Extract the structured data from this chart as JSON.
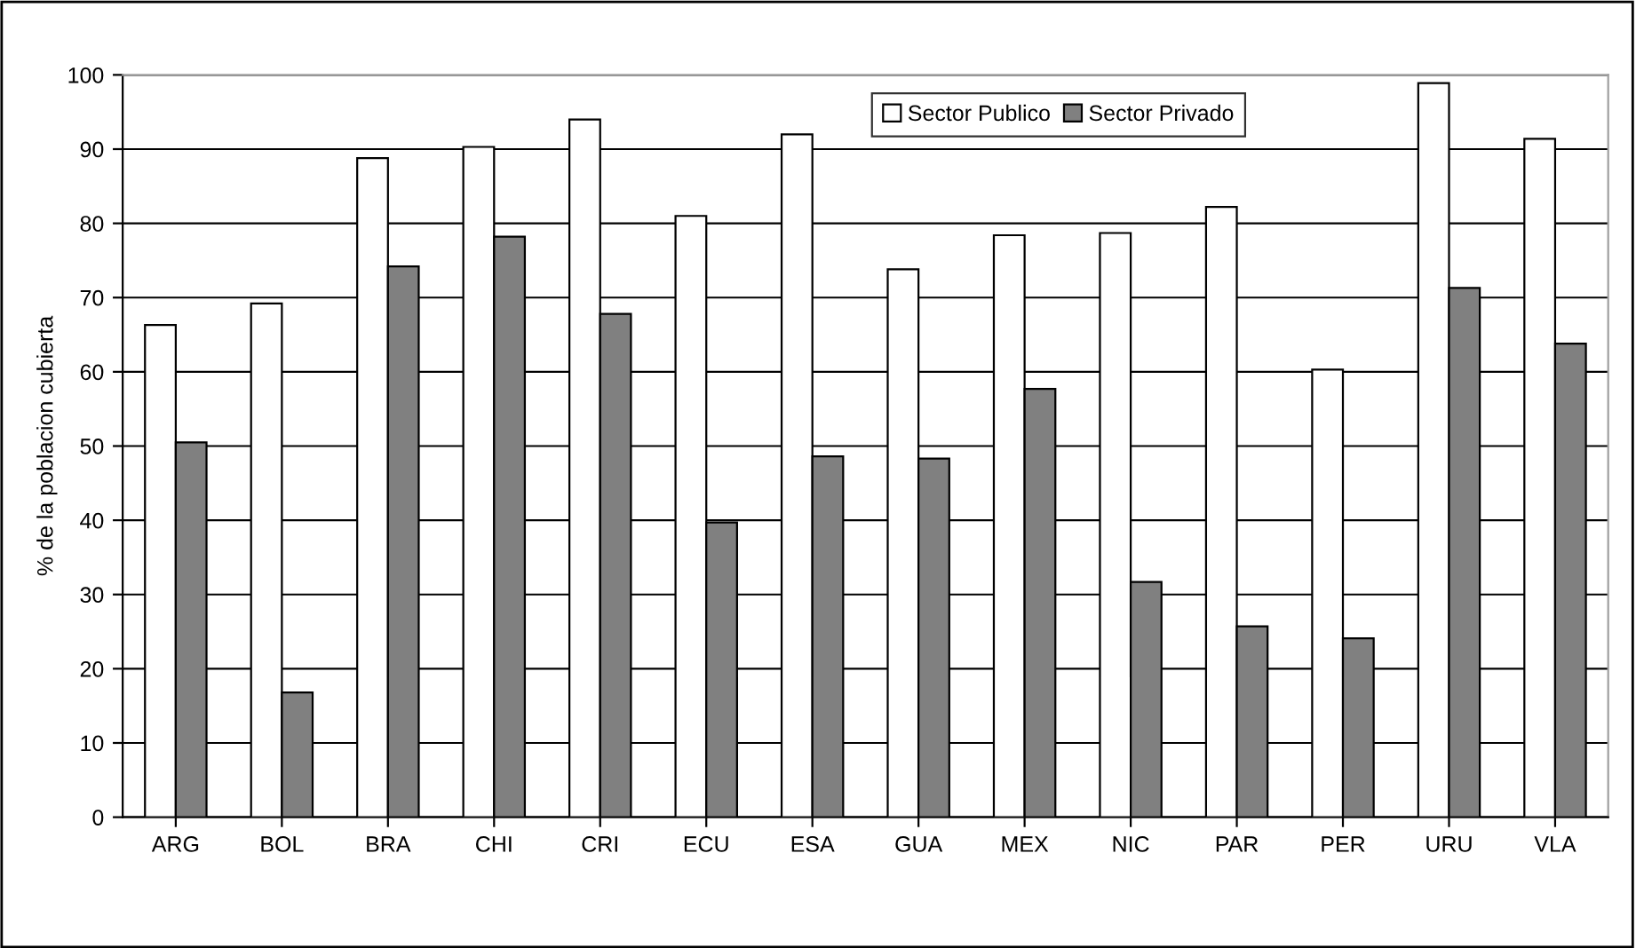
{
  "chart_data": {
    "type": "bar",
    "ylabel": "% de la poblacion cubierta",
    "categories": [
      "ARG",
      "BOL",
      "BRA",
      "CHI",
      "CRI",
      "ECU",
      "ESA",
      "GUA",
      "MEX",
      "NIC",
      "PAR",
      "PER",
      "URU",
      "VLA"
    ],
    "series": [
      {
        "name": "Sector Publico",
        "color": "#ffffff",
        "values": [
          66.3,
          69.2,
          88.8,
          90.3,
          94.0,
          81.0,
          92.0,
          73.8,
          78.4,
          78.7,
          82.2,
          60.3,
          98.9,
          91.4
        ]
      },
      {
        "name": "Sector Privado",
        "color": "#808080",
        "values": [
          50.5,
          16.8,
          74.2,
          78.2,
          67.8,
          39.7,
          48.6,
          48.3,
          57.7,
          31.7,
          25.7,
          24.1,
          71.3,
          63.8
        ]
      }
    ],
    "ylim": [
      0,
      100
    ],
    "yticks": [
      0,
      10,
      20,
      30,
      40,
      50,
      60,
      70,
      80,
      90,
      100
    ],
    "grid": "y",
    "legend": "top"
  }
}
